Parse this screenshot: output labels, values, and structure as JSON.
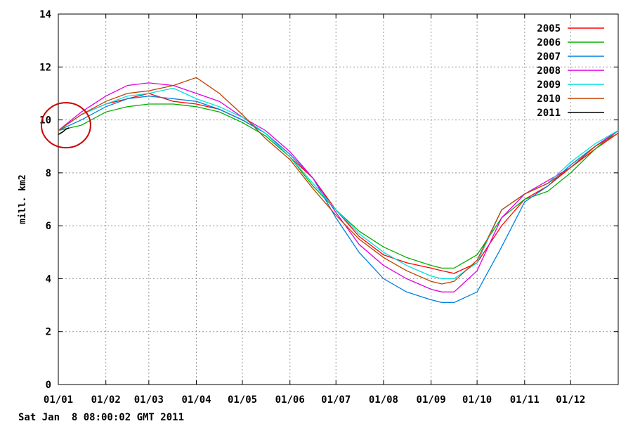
{
  "timestamp": "Sat Jan  8 08:00:02 GMT 2011",
  "chart_data": {
    "type": "line",
    "ylabel": "mill. km2",
    "ylim": [
      0,
      14
    ],
    "yticks": [
      "0",
      "2",
      "4",
      "6",
      "8",
      "10",
      "12",
      "14"
    ],
    "xlim": [
      0,
      365
    ],
    "xticks": [
      {
        "x": 0,
        "label": "01/01"
      },
      {
        "x": 31,
        "label": "01/02"
      },
      {
        "x": 59,
        "label": "01/03"
      },
      {
        "x": 90,
        "label": "01/04"
      },
      {
        "x": 120,
        "label": "01/05"
      },
      {
        "x": 151,
        "label": "01/06"
      },
      {
        "x": 181,
        "label": "01/07"
      },
      {
        "x": 212,
        "label": "01/08"
      },
      {
        "x": 243,
        "label": "01/09"
      },
      {
        "x": 273,
        "label": "01/10"
      },
      {
        "x": 304,
        "label": "01/11"
      },
      {
        "x": 334,
        "label": "01/12"
      }
    ],
    "grid": true,
    "legend_position": "top-right",
    "x": [
      0,
      15,
      31,
      45,
      59,
      75,
      90,
      105,
      120,
      135,
      151,
      166,
      181,
      196,
      212,
      227,
      243,
      250,
      258,
      273,
      289,
      304,
      319,
      334,
      350,
      365
    ],
    "series": [
      {
        "name": "2005",
        "color": "#ff0000",
        "values": [
          9.6,
          10.2,
          10.6,
          10.8,
          11.0,
          10.7,
          10.6,
          10.4,
          10.0,
          9.5,
          8.6,
          7.8,
          6.6,
          5.6,
          4.9,
          4.6,
          4.4,
          4.3,
          4.2,
          4.6,
          6.0,
          7.0,
          7.5,
          8.2,
          8.9,
          9.5
        ]
      },
      {
        "name": "2006",
        "color": "#00b000",
        "values": [
          9.6,
          9.8,
          10.3,
          10.5,
          10.6,
          10.6,
          10.5,
          10.3,
          9.9,
          9.4,
          8.6,
          7.5,
          6.6,
          5.8,
          5.2,
          4.8,
          4.5,
          4.4,
          4.4,
          4.9,
          6.3,
          7.0,
          7.3,
          8.0,
          8.9,
          9.6
        ]
      },
      {
        "name": "2007",
        "color": "#0080e0",
        "values": [
          9.6,
          10.0,
          10.5,
          10.8,
          10.9,
          10.8,
          10.7,
          10.4,
          10.0,
          9.5,
          8.7,
          7.8,
          6.3,
          5.0,
          4.0,
          3.5,
          3.2,
          3.1,
          3.1,
          3.5,
          5.2,
          6.9,
          7.5,
          8.3,
          9.0,
          9.6
        ]
      },
      {
        "name": "2008",
        "color": "#e000e0",
        "values": [
          9.6,
          10.3,
          10.9,
          11.3,
          11.4,
          11.3,
          11.0,
          10.7,
          10.1,
          9.6,
          8.8,
          7.8,
          6.5,
          5.3,
          4.5,
          4.0,
          3.6,
          3.5,
          3.5,
          4.3,
          6.3,
          7.2,
          7.7,
          8.2,
          9.0,
          9.6
        ]
      },
      {
        "name": "2009",
        "color": "#00e0e0",
        "values": [
          9.6,
          10.2,
          10.6,
          10.9,
          11.0,
          11.2,
          10.8,
          10.5,
          10.1,
          9.5,
          8.6,
          7.6,
          6.6,
          5.7,
          5.0,
          4.5,
          4.1,
          4.0,
          4.0,
          4.6,
          6.6,
          7.2,
          7.6,
          8.4,
          9.1,
          9.6
        ]
      },
      {
        "name": "2010",
        "color": "#c04000",
        "values": [
          9.6,
          10.2,
          10.7,
          11.0,
          11.1,
          11.3,
          11.6,
          11.0,
          10.2,
          9.3,
          8.5,
          7.4,
          6.4,
          5.5,
          4.8,
          4.3,
          3.9,
          3.8,
          3.9,
          4.7,
          6.6,
          7.2,
          7.6,
          8.2,
          9.0,
          9.5
        ]
      },
      {
        "name": "2011",
        "color": "#000000",
        "values": [
          9.6,
          null,
          null,
          null,
          null,
          null,
          null,
          null,
          null,
          null,
          null,
          null,
          null,
          null,
          null,
          null,
          null,
          null,
          null,
          null,
          null,
          null,
          null,
          null,
          null,
          null
        ]
      }
    ],
    "series_2011_points": {
      "x": [
        0,
        3,
        5,
        7
      ],
      "values": [
        9.45,
        9.55,
        9.65,
        9.7
      ]
    },
    "annotation": {
      "type": "circle",
      "color": "#cc0000",
      "x": 5,
      "y": 9.8,
      "rx_days": 16,
      "ry_units": 0.85
    }
  }
}
